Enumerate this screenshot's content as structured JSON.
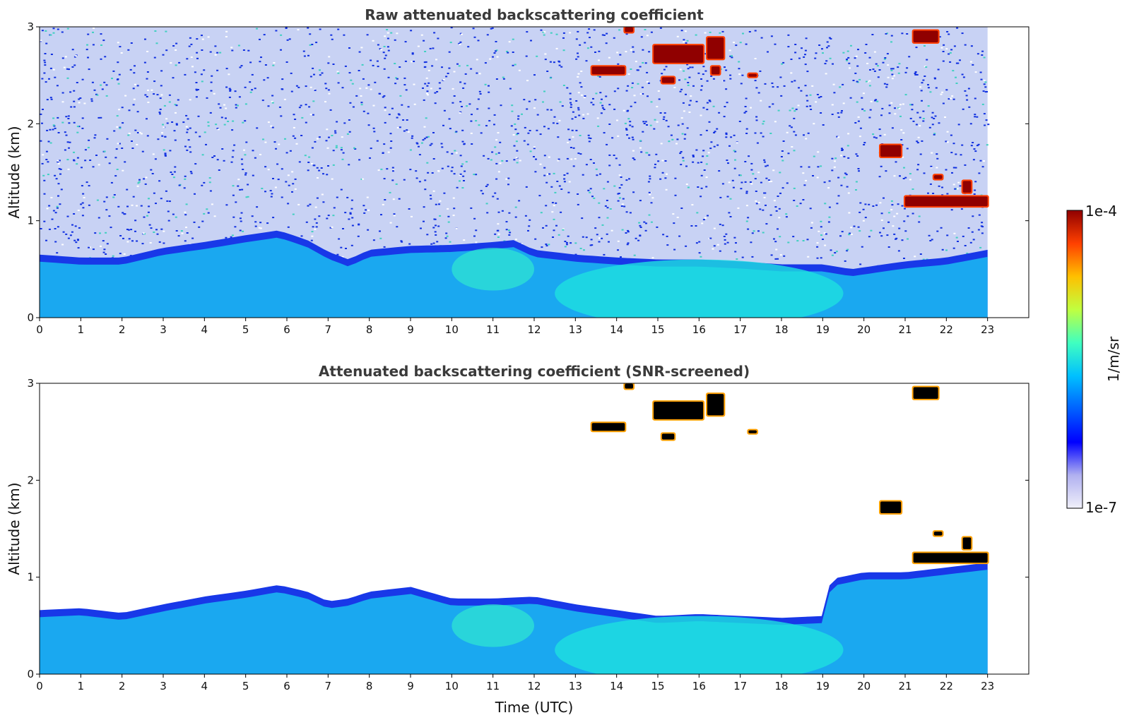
{
  "chart_data": [
    {
      "type": "heatmap",
      "title": "Raw attenuated backscattering coefficient",
      "xlabel": "",
      "ylabel": "Altitude (km)",
      "xlim": [
        0,
        24
      ],
      "ylim": [
        0,
        3
      ],
      "xticks": [
        0,
        1,
        2,
        3,
        4,
        5,
        6,
        7,
        8,
        9,
        10,
        11,
        12,
        13,
        14,
        15,
        16,
        17,
        18,
        19,
        20,
        21,
        22,
        23
      ],
      "yticks": [
        0,
        1,
        2,
        3
      ],
      "data_end_hour": 23,
      "boundary_layer_top_km": [
        [
          0,
          0.65
        ],
        [
          1,
          0.62
        ],
        [
          2,
          0.62
        ],
        [
          3,
          0.72
        ],
        [
          4,
          0.78
        ],
        [
          5,
          0.85
        ],
        [
          5.8,
          0.9
        ],
        [
          6.5,
          0.8
        ],
        [
          7,
          0.68
        ],
        [
          7.5,
          0.6
        ],
        [
          8,
          0.7
        ],
        [
          9,
          0.74
        ],
        [
          10,
          0.75
        ],
        [
          11,
          0.78
        ],
        [
          11.5,
          0.8
        ],
        [
          12,
          0.7
        ],
        [
          13,
          0.65
        ],
        [
          14,
          0.62
        ],
        [
          15,
          0.6
        ],
        [
          16,
          0.6
        ],
        [
          17,
          0.58
        ],
        [
          18,
          0.55
        ],
        [
          19,
          0.55
        ],
        [
          19.7,
          0.5
        ],
        [
          20.5,
          0.55
        ],
        [
          21,
          0.58
        ],
        [
          22,
          0.62
        ],
        [
          23,
          0.7
        ]
      ],
      "cloud_features": [
        {
          "t0": 13.4,
          "t1": 14.2,
          "z": 2.55,
          "depth": 0.08
        },
        {
          "t0": 14.9,
          "t1": 16.1,
          "z": 2.72,
          "depth": 0.18
        },
        {
          "t0": 16.2,
          "t1": 16.6,
          "z": 2.78,
          "depth": 0.22
        },
        {
          "t0": 14.2,
          "t1": 14.4,
          "z": 2.97,
          "depth": 0.05
        },
        {
          "t0": 16.3,
          "t1": 16.5,
          "z": 2.55,
          "depth": 0.08
        },
        {
          "t0": 15.1,
          "t1": 15.4,
          "z": 2.45,
          "depth": 0.06
        },
        {
          "t0": 17.2,
          "t1": 17.4,
          "z": 2.5,
          "depth": 0.03
        },
        {
          "t0": 21.2,
          "t1": 21.8,
          "z": 2.9,
          "depth": 0.12
        },
        {
          "t0": 20.4,
          "t1": 20.9,
          "z": 1.72,
          "depth": 0.12
        },
        {
          "t0": 21.0,
          "t1": 23.0,
          "z": 1.2,
          "depth": 0.1
        },
        {
          "t0": 22.4,
          "t1": 22.6,
          "z": 1.35,
          "depth": 0.12
        },
        {
          "t0": 21.7,
          "t1": 21.9,
          "z": 1.45,
          "depth": 0.04
        }
      ]
    },
    {
      "type": "heatmap",
      "title": "Attenuated backscattering coefficient (SNR-screened)",
      "xlabel": "Time (UTC)",
      "ylabel": "Altitude (km)",
      "xlim": [
        0,
        24
      ],
      "ylim": [
        0,
        3
      ],
      "xticks": [
        0,
        1,
        2,
        3,
        4,
        5,
        6,
        7,
        8,
        9,
        10,
        11,
        12,
        13,
        14,
        15,
        16,
        17,
        18,
        19,
        20,
        21,
        22,
        23
      ],
      "yticks": [
        0,
        1,
        2,
        3
      ],
      "data_end_hour": 23,
      "boundary_layer_top_km": [
        [
          0,
          0.66
        ],
        [
          1,
          0.68
        ],
        [
          2,
          0.63
        ],
        [
          3,
          0.72
        ],
        [
          4,
          0.8
        ],
        [
          5,
          0.86
        ],
        [
          5.8,
          0.92
        ],
        [
          6.5,
          0.85
        ],
        [
          7,
          0.75
        ],
        [
          7.5,
          0.78
        ],
        [
          8,
          0.85
        ],
        [
          9,
          0.9
        ],
        [
          10,
          0.78
        ],
        [
          11,
          0.78
        ],
        [
          12,
          0.8
        ],
        [
          13,
          0.72
        ],
        [
          14,
          0.66
        ],
        [
          15,
          0.6
        ],
        [
          16,
          0.62
        ],
        [
          17,
          0.6
        ],
        [
          18,
          0.58
        ],
        [
          19,
          0.6
        ],
        [
          19.2,
          0.98
        ],
        [
          20,
          1.05
        ],
        [
          21,
          1.05
        ],
        [
          22,
          1.1
        ],
        [
          23,
          1.15
        ]
      ],
      "cloud_features": [
        {
          "t0": 13.4,
          "t1": 14.2,
          "z": 2.55,
          "depth": 0.08
        },
        {
          "t0": 14.9,
          "t1": 16.1,
          "z": 2.72,
          "depth": 0.18
        },
        {
          "t0": 16.2,
          "t1": 16.6,
          "z": 2.78,
          "depth": 0.22
        },
        {
          "t0": 14.2,
          "t1": 14.4,
          "z": 2.97,
          "depth": 0.05
        },
        {
          "t0": 15.1,
          "t1": 15.4,
          "z": 2.45,
          "depth": 0.06
        },
        {
          "t0": 17.2,
          "t1": 17.4,
          "z": 2.5,
          "depth": 0.03
        },
        {
          "t0": 21.2,
          "t1": 21.8,
          "z": 2.9,
          "depth": 0.12
        },
        {
          "t0": 20.4,
          "t1": 20.9,
          "z": 1.72,
          "depth": 0.12
        },
        {
          "t0": 21.2,
          "t1": 23.0,
          "z": 1.2,
          "depth": 0.1
        },
        {
          "t0": 22.4,
          "t1": 22.6,
          "z": 1.35,
          "depth": 0.12
        },
        {
          "t0": 21.7,
          "t1": 21.9,
          "z": 1.45,
          "depth": 0.04
        }
      ]
    }
  ],
  "colorbar": {
    "label": "1/m/sr",
    "max_label": "1e-4",
    "min_label": "1e-7",
    "scale": "log",
    "colormap": "jet-with-white-low-end",
    "stops": [
      "#f0f0fa",
      "#b0b0f0",
      "#0000ff",
      "#0060ff",
      "#00c0ff",
      "#40ffc0",
      "#c0ff40",
      "#ffc000",
      "#ff4000",
      "#900000"
    ]
  }
}
